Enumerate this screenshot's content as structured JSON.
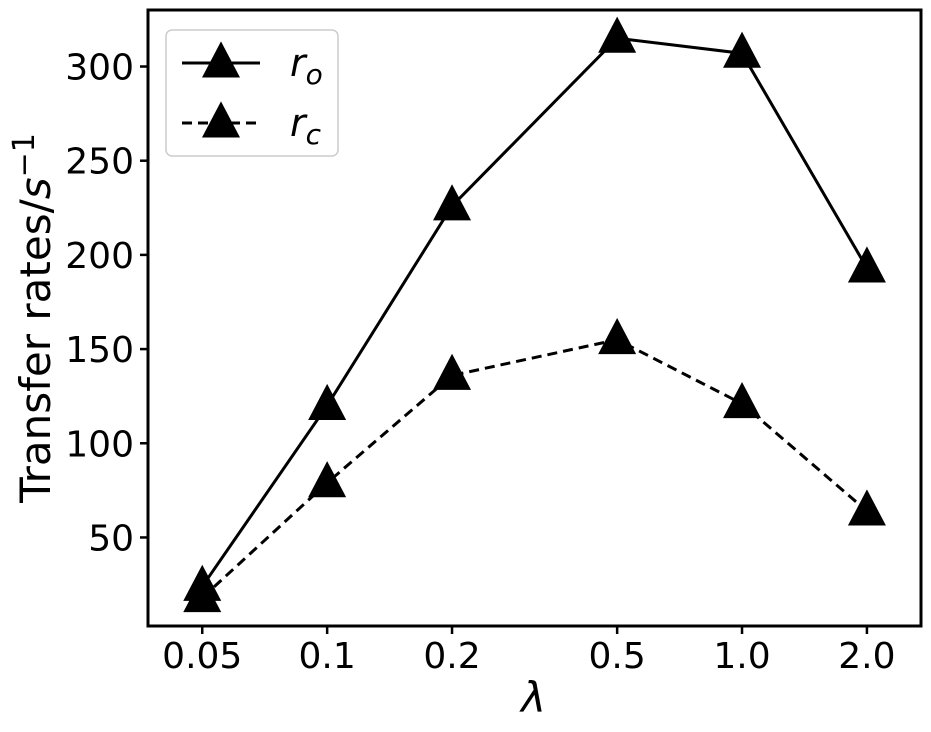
{
  "chart_data": {
    "type": "line",
    "x_scale": "log",
    "categories": [
      "0.05",
      "0.1",
      "0.2",
      "0.5",
      "1.0",
      "2.0"
    ],
    "x": [
      0.05,
      0.1,
      0.2,
      0.5,
      1.0,
      2.0
    ],
    "series": [
      {
        "name": "r_o",
        "label_base": "r",
        "label_sub": "o",
        "line_style": "solid",
        "marker": "triangle",
        "color": "#000000",
        "values": [
          24,
          120,
          226,
          315,
          307,
          193
        ]
      },
      {
        "name": "r_c",
        "label_base": "r",
        "label_sub": "c",
        "line_style": "dashed",
        "marker": "triangle",
        "color": "#000000",
        "values": [
          18,
          79,
          136,
          155,
          121,
          64
        ]
      }
    ],
    "xlabel": "λ",
    "ylabel_text": "Transfer rates/",
    "ylabel_unit": "s",
    "ylabel_exp": "−1",
    "ylim": [
      3,
      330
    ],
    "yticks": [
      50,
      100,
      150,
      200,
      250,
      300
    ],
    "grid": false,
    "legend_position": "top-left"
  }
}
